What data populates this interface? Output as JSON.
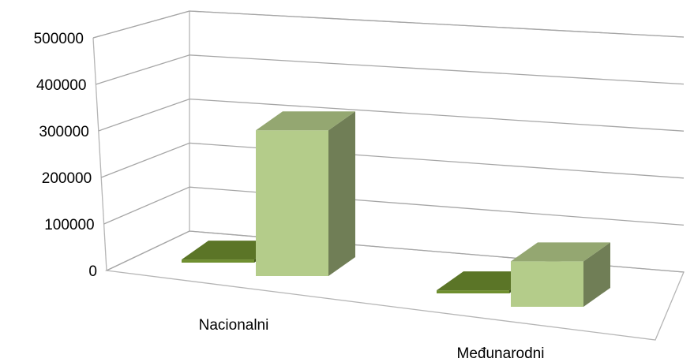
{
  "chart_data": {
    "type": "bar",
    "style": "3d-clustered-column",
    "title": "",
    "xlabel": "",
    "ylabel": "",
    "ylim": [
      0,
      500000
    ],
    "yticks": [
      0,
      100000,
      200000,
      300000,
      400000,
      500000
    ],
    "ytick_labels": [
      "0",
      "100000",
      "200000",
      "300000",
      "400000",
      "500000"
    ],
    "grid": true,
    "legend": "none",
    "categories": [
      "Nacionalni",
      "Međunarodni"
    ],
    "series": [
      {
        "values": [
          8000,
          8000
        ],
        "color": "#6f8f2f"
      },
      {
        "values": [
          385000,
          120000
        ],
        "color": "#b4cc8a"
      }
    ]
  }
}
